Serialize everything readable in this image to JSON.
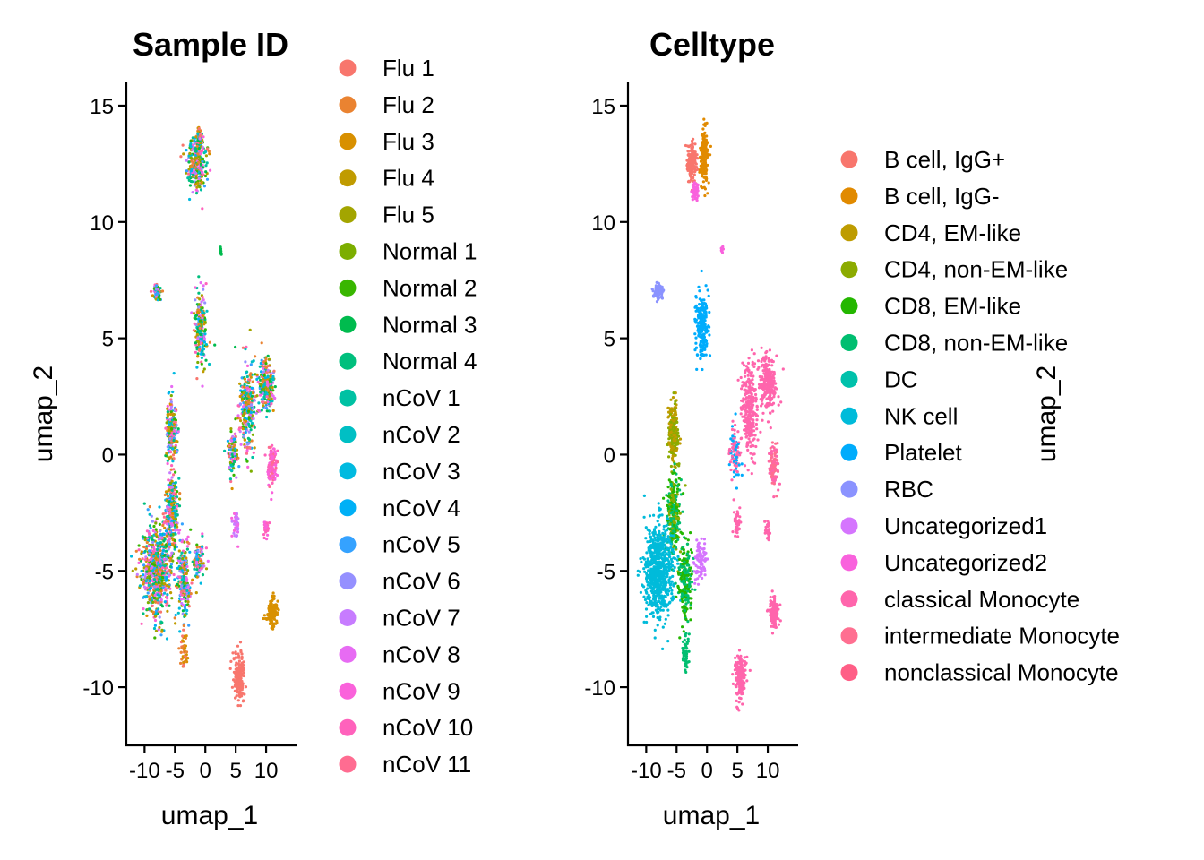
{
  "chart_data": [
    {
      "type": "scatter",
      "title": "Sample ID",
      "xlabel": "umap_1",
      "ylabel": "umap_2",
      "xlim": [
        -13,
        15
      ],
      "ylim": [
        -12.5,
        16
      ],
      "x_ticks": [
        -10,
        -5,
        0,
        5,
        10
      ],
      "x_tick_labels": [
        "-10",
        "-5",
        "0",
        "5",
        "10"
      ],
      "y_ticks": [
        -10,
        -5,
        0,
        5,
        10,
        15
      ],
      "y_tick_labels": [
        "-10",
        "-5",
        "0",
        "5",
        "10",
        "15"
      ],
      "grid": false,
      "legend_position": "right",
      "series": [
        {
          "name": "Flu 1",
          "color": "#F8766D"
        },
        {
          "name": "Flu 2",
          "color": "#EA8331"
        },
        {
          "name": "Flu 3",
          "color": "#D89000"
        },
        {
          "name": "Flu 4",
          "color": "#C09B00"
        },
        {
          "name": "Flu 5",
          "color": "#A3A500"
        },
        {
          "name": "Normal 1",
          "color": "#7CAE00"
        },
        {
          "name": "Normal 2",
          "color": "#39B600"
        },
        {
          "name": "Normal 3",
          "color": "#00BB4E"
        },
        {
          "name": "Normal 4",
          "color": "#00BF7D"
        },
        {
          "name": "nCoV 1",
          "color": "#00C1A3"
        },
        {
          "name": "nCoV 2",
          "color": "#00BFC4"
        },
        {
          "name": "nCoV 3",
          "color": "#00BAE0"
        },
        {
          "name": "nCoV 4",
          "color": "#00B0F6"
        },
        {
          "name": "nCoV 5",
          "color": "#35A2FF"
        },
        {
          "name": "nCoV 6",
          "color": "#9590FF"
        },
        {
          "name": "nCoV 7",
          "color": "#C77CFF"
        },
        {
          "name": "nCoV 8",
          "color": "#E76BF3"
        },
        {
          "name": "nCoV 9",
          "color": "#FA62DB"
        },
        {
          "name": "nCoV 10",
          "color": "#FF62BC"
        },
        {
          "name": "nCoV 11",
          "color": "#FF6C91"
        }
      ],
      "clusters": [
        {
          "x": -1.5,
          "y": 12.5,
          "sx": 1.4,
          "sy": 1.0,
          "n": 260,
          "colors": "mixed"
        },
        {
          "x": -1.0,
          "y": 13.5,
          "sx": 0.5,
          "sy": 0.6,
          "n": 80,
          "colors": "mixed"
        },
        {
          "x": -8.0,
          "y": 7.0,
          "sx": 0.7,
          "sy": 0.3,
          "n": 60,
          "colors": "mixed"
        },
        {
          "x": -0.8,
          "y": 5.5,
          "sx": 0.9,
          "sy": 1.4,
          "n": 200,
          "colors": "mixed"
        },
        {
          "x": 2.5,
          "y": 8.8,
          "sx": 0.2,
          "sy": 0.2,
          "n": 10,
          "colors": [
            7
          ]
        },
        {
          "x": 7.0,
          "y": 2.0,
          "sx": 1.2,
          "sy": 1.8,
          "n": 260,
          "colors": "mixed"
        },
        {
          "x": 10.0,
          "y": 3.0,
          "sx": 1.2,
          "sy": 1.0,
          "n": 240,
          "colors": "mixed"
        },
        {
          "x": 11.0,
          "y": -0.5,
          "sx": 0.7,
          "sy": 0.8,
          "n": 120,
          "colors": [
            17,
            18,
            19
          ]
        },
        {
          "x": 4.5,
          "y": 0.0,
          "sx": 0.8,
          "sy": 1.0,
          "n": 90,
          "colors": "mixed"
        },
        {
          "x": 10.0,
          "y": -3.2,
          "sx": 0.4,
          "sy": 0.4,
          "n": 30,
          "colors": [
            17,
            18
          ]
        },
        {
          "x": 5.0,
          "y": -3.0,
          "sx": 0.5,
          "sy": 0.6,
          "n": 40,
          "colors": [
            15,
            16,
            17
          ]
        },
        {
          "x": -5.5,
          "y": 1.0,
          "sx": 0.8,
          "sy": 1.2,
          "n": 220,
          "colors": "mixed"
        },
        {
          "x": -5.5,
          "y": -2.5,
          "sx": 1.0,
          "sy": 1.6,
          "n": 260,
          "colors": "mixed"
        },
        {
          "x": -8.0,
          "y": -5.0,
          "sx": 2.2,
          "sy": 1.8,
          "n": 700,
          "colors": "mixed"
        },
        {
          "x": -3.5,
          "y": -5.5,
          "sx": 1.0,
          "sy": 1.6,
          "n": 200,
          "colors": "mixed"
        },
        {
          "x": -1.0,
          "y": -4.5,
          "sx": 0.8,
          "sy": 0.8,
          "n": 90,
          "colors": "mixed"
        },
        {
          "x": -3.5,
          "y": -8.5,
          "sx": 0.5,
          "sy": 0.7,
          "n": 50,
          "colors": [
            0,
            1,
            2
          ]
        },
        {
          "x": 11.0,
          "y": -6.8,
          "sx": 0.8,
          "sy": 0.6,
          "n": 120,
          "colors": [
            2
          ]
        },
        {
          "x": 5.5,
          "y": -9.6,
          "sx": 0.8,
          "sy": 0.9,
          "n": 180,
          "colors": [
            0
          ]
        }
      ]
    },
    {
      "type": "scatter",
      "title": "Celltype",
      "xlabel": "umap_1",
      "ylabel": "umap_2",
      "xlim": [
        -13,
        15
      ],
      "ylim": [
        -12.5,
        16
      ],
      "x_ticks": [
        -10,
        -5,
        0,
        5,
        10
      ],
      "x_tick_labels": [
        "-10",
        "-5",
        "0",
        "5",
        "10"
      ],
      "y_ticks": [
        -10,
        -5,
        0,
        5,
        10,
        15
      ],
      "y_tick_labels": [
        "-10",
        "-5",
        "0",
        "5",
        "10",
        "15"
      ],
      "grid": false,
      "legend_position": "right",
      "series": [
        {
          "name": "B cell, IgG+",
          "color": "#F8766D"
        },
        {
          "name": "B cell, IgG-",
          "color": "#E18A00"
        },
        {
          "name": "CD4, EM-like",
          "color": "#BE9C00"
        },
        {
          "name": "CD4, non-EM-like",
          "color": "#8CAB00"
        },
        {
          "name": "CD8, EM-like",
          "color": "#24B700"
        },
        {
          "name": "CD8, non-EM-like",
          "color": "#00BE70"
        },
        {
          "name": "DC",
          "color": "#00C1AB"
        },
        {
          "name": "NK cell",
          "color": "#00BBDA"
        },
        {
          "name": "Platelet",
          "color": "#00ACFC"
        },
        {
          "name": "RBC",
          "color": "#8B93FF"
        },
        {
          "name": "Uncategorized1",
          "color": "#D575FE"
        },
        {
          "name": "Uncategorized2",
          "color": "#F962DD"
        },
        {
          "name": "classical Monocyte",
          "color": "#FF65AC"
        },
        {
          "name": "intermediate Monocyte",
          "color": "#FF6F91"
        },
        {
          "name": "nonclassical Monocyte",
          "color": "#FF5E86"
        }
      ],
      "legend_colors": [
        "#F8766D",
        "#E18A00",
        "#BE9C00",
        "#8CAB00",
        "#24B700",
        "#00BE70",
        "#00C1AB",
        "#00BBDA",
        "#00ACFC",
        "#8B93FF",
        "#D575FE",
        "#F962DD",
        "#FF65AC",
        "#FF6F91",
        "#FF5E86"
      ],
      "clusters": [
        {
          "x": -2.5,
          "y": 12.5,
          "sx": 0.8,
          "sy": 0.8,
          "n": 150,
          "colors": [
            0
          ]
        },
        {
          "x": -0.5,
          "y": 12.8,
          "sx": 0.6,
          "sy": 1.0,
          "n": 170,
          "colors": [
            1
          ]
        },
        {
          "x": -2.0,
          "y": 11.3,
          "sx": 0.6,
          "sy": 0.4,
          "n": 40,
          "colors": [
            11
          ]
        },
        {
          "x": -8.0,
          "y": 7.0,
          "sx": 0.7,
          "sy": 0.3,
          "n": 70,
          "colors": [
            9
          ]
        },
        {
          "x": -0.8,
          "y": 5.5,
          "sx": 0.9,
          "sy": 1.4,
          "n": 220,
          "colors": [
            8
          ]
        },
        {
          "x": 2.5,
          "y": 8.8,
          "sx": 0.2,
          "sy": 0.2,
          "n": 10,
          "colors": [
            11
          ]
        },
        {
          "x": 7.0,
          "y": 2.0,
          "sx": 1.2,
          "sy": 1.8,
          "n": 260,
          "colors": [
            12
          ]
        },
        {
          "x": 10.0,
          "y": 3.0,
          "sx": 1.2,
          "sy": 1.0,
          "n": 240,
          "colors": [
            12
          ]
        },
        {
          "x": 11.0,
          "y": -0.5,
          "sx": 0.7,
          "sy": 0.8,
          "n": 120,
          "colors": [
            12,
            13
          ]
        },
        {
          "x": 4.5,
          "y": 0.0,
          "sx": 0.8,
          "sy": 1.0,
          "n": 90,
          "colors": [
            12,
            8
          ]
        },
        {
          "x": 10.0,
          "y": -3.2,
          "sx": 0.4,
          "sy": 0.4,
          "n": 30,
          "colors": [
            12
          ]
        },
        {
          "x": 5.0,
          "y": -3.0,
          "sx": 0.5,
          "sy": 0.6,
          "n": 40,
          "colors": [
            12
          ]
        },
        {
          "x": -5.5,
          "y": 1.0,
          "sx": 0.8,
          "sy": 1.2,
          "n": 220,
          "colors": [
            2,
            3
          ]
        },
        {
          "x": -5.5,
          "y": -2.5,
          "sx": 1.0,
          "sy": 1.6,
          "n": 260,
          "colors": [
            3,
            4,
            5
          ]
        },
        {
          "x": -8.0,
          "y": -5.0,
          "sx": 2.2,
          "sy": 1.8,
          "n": 700,
          "colors": [
            7
          ]
        },
        {
          "x": -3.5,
          "y": -5.5,
          "sx": 1.0,
          "sy": 1.6,
          "n": 200,
          "colors": [
            4,
            5
          ]
        },
        {
          "x": -1.0,
          "y": -4.5,
          "sx": 0.8,
          "sy": 0.8,
          "n": 90,
          "colors": [
            10
          ]
        },
        {
          "x": -3.5,
          "y": -8.5,
          "sx": 0.5,
          "sy": 0.7,
          "n": 50,
          "colors": [
            5
          ]
        },
        {
          "x": 11.0,
          "y": -6.8,
          "sx": 0.8,
          "sy": 0.6,
          "n": 120,
          "colors": [
            12
          ]
        },
        {
          "x": 5.5,
          "y": -9.6,
          "sx": 0.8,
          "sy": 0.9,
          "n": 180,
          "colors": [
            12
          ]
        }
      ]
    }
  ]
}
